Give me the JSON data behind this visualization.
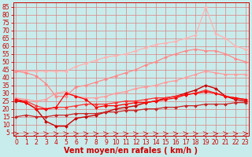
{
  "background_color": "#c8ecec",
  "grid_color": "#e08080",
  "xlabel": "Vent moyen/en rafales ( km/h )",
  "x_ticks": [
    0,
    1,
    2,
    3,
    4,
    5,
    6,
    7,
    8,
    9,
    10,
    11,
    12,
    13,
    14,
    15,
    16,
    17,
    18,
    19,
    20,
    21,
    22,
    23
  ],
  "y_ticks": [
    5,
    10,
    15,
    20,
    25,
    30,
    35,
    40,
    45,
    50,
    55,
    60,
    65,
    70,
    75,
    80,
    85
  ],
  "ylim": [
    3,
    88
  ],
  "xlim": [
    -0.3,
    23.3
  ],
  "series": [
    {
      "color": "#ffb0b0",
      "linewidth": 0.9,
      "marker": "D",
      "markersize": 2.0,
      "x": [
        0,
        1,
        2,
        3,
        4,
        5,
        6,
        7,
        8,
        9,
        10,
        11,
        12,
        13,
        14,
        15,
        16,
        17,
        18,
        19,
        20,
        21,
        22,
        23
      ],
      "y": [
        44,
        44,
        44,
        44,
        44,
        44,
        47,
        49,
        51,
        53,
        54,
        55,
        57,
        59,
        61,
        62,
        63,
        65,
        67,
        85,
        68,
        65,
        60,
        58
      ]
    },
    {
      "color": "#ff8888",
      "linewidth": 0.9,
      "marker": "D",
      "markersize": 2.0,
      "x": [
        0,
        1,
        2,
        3,
        4,
        5,
        6,
        7,
        8,
        9,
        10,
        11,
        12,
        13,
        14,
        15,
        16,
        17,
        18,
        19,
        20,
        21,
        22,
        23
      ],
      "y": [
        44,
        43,
        41,
        36,
        28,
        28,
        34,
        35,
        37,
        39,
        41,
        43,
        45,
        48,
        50,
        53,
        55,
        57,
        58,
        57,
        57,
        55,
        52,
        50
      ]
    },
    {
      "color": "#ff9999",
      "linewidth": 0.9,
      "marker": "D",
      "markersize": 2.0,
      "x": [
        0,
        1,
        2,
        3,
        4,
        5,
        6,
        7,
        8,
        9,
        10,
        11,
        12,
        13,
        14,
        15,
        16,
        17,
        18,
        19,
        20,
        21,
        22,
        23
      ],
      "y": [
        27,
        26,
        25,
        26,
        30,
        31,
        28,
        27,
        27,
        28,
        30,
        31,
        33,
        34,
        35,
        37,
        38,
        40,
        42,
        44,
        43,
        42,
        42,
        42
      ]
    },
    {
      "color": "#cc0000",
      "linewidth": 1.0,
      "marker": "D",
      "markersize": 2.0,
      "x": [
        0,
        1,
        2,
        3,
        4,
        5,
        6,
        7,
        8,
        9,
        10,
        11,
        12,
        13,
        14,
        15,
        16,
        17,
        18,
        19,
        20,
        21,
        22,
        23
      ],
      "y": [
        25,
        24,
        20,
        12,
        9,
        9,
        14,
        15,
        16,
        18,
        20,
        21,
        22,
        24,
        25,
        27,
        28,
        30,
        32,
        35,
        33,
        28,
        26,
        25
      ]
    },
    {
      "color": "#ff3333",
      "linewidth": 0.9,
      "marker": "D",
      "markersize": 2.0,
      "x": [
        0,
        1,
        2,
        3,
        4,
        5,
        6,
        7,
        8,
        9,
        10,
        11,
        12,
        13,
        14,
        15,
        16,
        17,
        18,
        19,
        20,
        21,
        22,
        23
      ],
      "y": [
        26,
        25,
        22,
        20,
        21,
        21,
        22,
        23,
        23,
        23,
        24,
        25,
        25,
        26,
        27,
        27,
        28,
        29,
        30,
        32,
        30,
        28,
        27,
        26
      ]
    },
    {
      "color": "#ff0000",
      "linewidth": 0.9,
      "marker": "D",
      "markersize": 2.0,
      "x": [
        0,
        1,
        2,
        3,
        4,
        5,
        6,
        7,
        8,
        9,
        10,
        11,
        12,
        13,
        14,
        15,
        16,
        17,
        18,
        19,
        20,
        21,
        22,
        23
      ],
      "y": [
        26,
        24,
        20,
        20,
        21,
        30,
        28,
        26,
        21,
        22,
        22,
        23,
        24,
        24,
        25,
        26,
        27,
        29,
        30,
        31,
        30,
        28,
        27,
        26
      ]
    },
    {
      "color": "#cc2222",
      "linewidth": 0.9,
      "marker": "D",
      "markersize": 2.0,
      "x": [
        0,
        1,
        2,
        3,
        4,
        5,
        6,
        7,
        8,
        9,
        10,
        11,
        12,
        13,
        14,
        15,
        16,
        17,
        18,
        19,
        20,
        21,
        22,
        23
      ],
      "y": [
        15,
        16,
        15,
        15,
        16,
        16,
        17,
        17,
        17,
        18,
        18,
        19,
        19,
        20,
        20,
        21,
        21,
        22,
        22,
        23,
        23,
        23,
        24,
        24
      ]
    }
  ],
  "xlabel_color": "#cc0000",
  "xlabel_fontsize": 7,
  "tick_fontsize": 5.5,
  "tick_color": "#cc0000"
}
